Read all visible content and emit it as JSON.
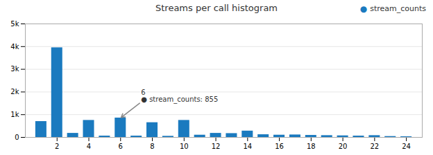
{
  "chart_data": {
    "type": "bar",
    "title": "Streams per call histogram",
    "x": [
      1,
      2,
      3,
      4,
      5,
      6,
      7,
      8,
      9,
      10,
      11,
      12,
      13,
      14,
      15,
      16,
      17,
      18,
      19,
      20,
      21,
      22,
      23,
      24
    ],
    "series": [
      {
        "name": "stream_counts",
        "color": "#1a7abf",
        "values": [
          700,
          3950,
          180,
          750,
          60,
          855,
          60,
          650,
          50,
          750,
          100,
          180,
          170,
          280,
          120,
          100,
          110,
          90,
          80,
          70,
          60,
          80,
          40,
          30
        ]
      }
    ],
    "xlim": [
      0,
      25
    ],
    "xticks": [
      2,
      4,
      6,
      8,
      10,
      12,
      14,
      16,
      18,
      20,
      22,
      24
    ],
    "ylim": [
      0,
      5000
    ],
    "yticks": [
      0,
      {
        "value": 1000,
        "label": "1k"
      },
      {
        "value": 2000,
        "label": "2k"
      },
      {
        "value": 3000,
        "label": "3k"
      },
      {
        "value": 4000,
        "label": "4k"
      },
      {
        "value": 5000,
        "label": "5k"
      }
    ],
    "grid": true,
    "legend": "top-right",
    "annotations": [
      {
        "x": 6,
        "y": 855,
        "text": "6\n● stream_counts: 855"
      }
    ]
  }
}
